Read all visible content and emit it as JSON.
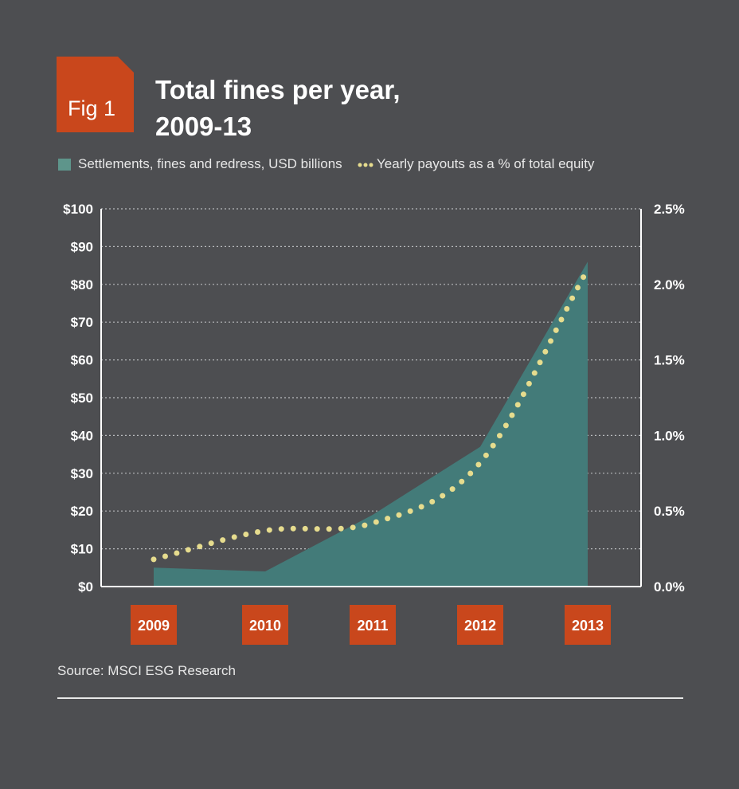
{
  "figure": {
    "tag": "Fig 1",
    "title_line1": "Total fines per year,",
    "title_line2": "2009-13",
    "source": "Source: MSCI ESG Research"
  },
  "colors": {
    "background": "#4d4e51",
    "area": "#437b79",
    "dots": "#e6dc8e",
    "tag": "#c9471c",
    "year_box": "#c9471c"
  },
  "chart_data": {
    "type": "area",
    "categories": [
      "2009",
      "2010",
      "2011",
      "2012",
      "2013"
    ],
    "x": [
      2009,
      2010,
      2011,
      2012,
      2013
    ],
    "series": [
      {
        "name": "Settlements, fines and redress, USD billions",
        "type": "area",
        "axis": "left",
        "values": [
          5,
          4,
          19,
          37,
          86
        ]
      },
      {
        "name": "Yearly payouts as a % of total equity",
        "type": "line",
        "style": "dotted",
        "axis": "right",
        "values": [
          0.18,
          0.37,
          0.42,
          0.82,
          2.1
        ]
      }
    ],
    "y_left": {
      "min": 0,
      "max": 100,
      "ticks": [
        "$0",
        "$10",
        "$20",
        "$30",
        "$40",
        "$50",
        "$60",
        "$70",
        "$80",
        "$90",
        "$100"
      ]
    },
    "y_right": {
      "min": 0,
      "max": 2.5,
      "ticks": [
        "0.0%",
        "0.5%",
        "1.0%",
        "1.5%",
        "2.0%",
        "2.5%"
      ]
    },
    "grid": true,
    "legend_position": "top-left"
  }
}
